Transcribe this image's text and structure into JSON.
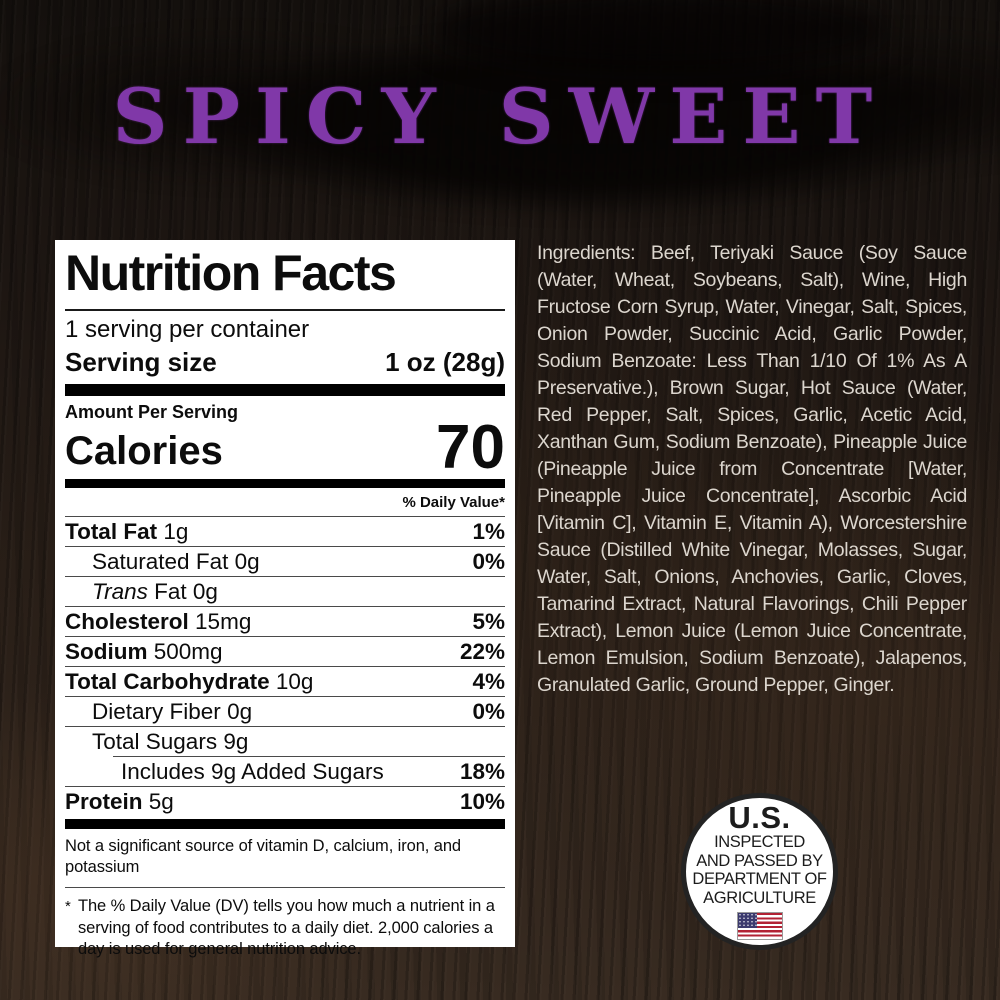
{
  "title": "SPICY SWEET",
  "colors": {
    "accent_purple": "#8038a8",
    "background_wood": "#2a1f18",
    "label_background": "#ffffff",
    "ingredients_text": "#dcd6ce",
    "flag_red": "#b22234",
    "flag_blue": "#3c3b6e"
  },
  "nutrition": {
    "header": "Nutrition Facts",
    "servings_per_container": "1 serving per container",
    "serving_size_label": "Serving size",
    "serving_size_value": "1 oz (28g)",
    "amount_per_serving": "Amount Per Serving",
    "calories_label": "Calories",
    "calories_value": "70",
    "daily_value_header": "% Daily Value*",
    "rows": [
      {
        "name": "Total Fat",
        "amount": "1g",
        "dv": "1%"
      },
      {
        "name": "Saturated Fat",
        "amount": "0g",
        "dv": "0%"
      },
      {
        "name": "Trans",
        "amount": "Fat 0g",
        "dv": ""
      },
      {
        "name": "Cholesterol",
        "amount": "15mg",
        "dv": "5%"
      },
      {
        "name": "Sodium",
        "amount": "500mg",
        "dv": "22%"
      },
      {
        "name": "Total Carbohydrate",
        "amount": "10g",
        "dv": "4%"
      },
      {
        "name": "Dietary Fiber",
        "amount": "0g",
        "dv": "0%"
      },
      {
        "name": "Total Sugars",
        "amount": "9g",
        "dv": ""
      },
      {
        "name": "Includes 9g Added Sugars",
        "amount": "",
        "dv": "18%"
      },
      {
        "name": "Protein",
        "amount": "5g",
        "dv": "10%"
      }
    ],
    "not_significant": "Not a significant source of vitamin D, calcium, iron, and potassium",
    "footnote_mark": "*",
    "footnote": "The % Daily Value (DV) tells you how much a nutrient in a serving of food contributes to a daily diet. 2,000 calories a day is used for general nutrition advice."
  },
  "ingredients": "Ingredients: Beef, Teriyaki Sauce (Soy Sauce (Water, Wheat, Soybeans, Salt), Wine, High Fructose Corn Syrup, Water, Vinegar, Salt, Spices, Onion Powder, Succinic Acid, Garlic Powder, Sodium Benzoate: Less Than 1/10 Of 1% As A Preservative.), Brown Sugar, Hot Sauce (Water, Red Pepper, Salt, Spices, Garlic, Acetic Acid, Xanthan Gum, Sodium Benzoate), Pineapple Juice (Pineapple Juice from Concentrate [Water, Pineapple Juice Concentrate], Ascorbic Acid [Vitamin C], Vitamin E, Vitamin A), Worcestershire Sauce (Distilled White Vinegar, Molasses, Sugar, Water, Salt, Onions, Anchovies, Garlic, Cloves, Tamarind Extract, Natural Flavorings, Chili Pepper Extract), Lemon Juice (Lemon Juice Concentrate, Lemon Emulsion, Sodium Benzoate), Jalapenos, Granulated Garlic, Ground Pepper, Ginger.",
  "seal": {
    "line1": "U.S.",
    "line2": "INSPECTED",
    "line3": "AND PASSED BY",
    "line4": "DEPARTMENT OF",
    "line5": "AGRICULTURE"
  }
}
